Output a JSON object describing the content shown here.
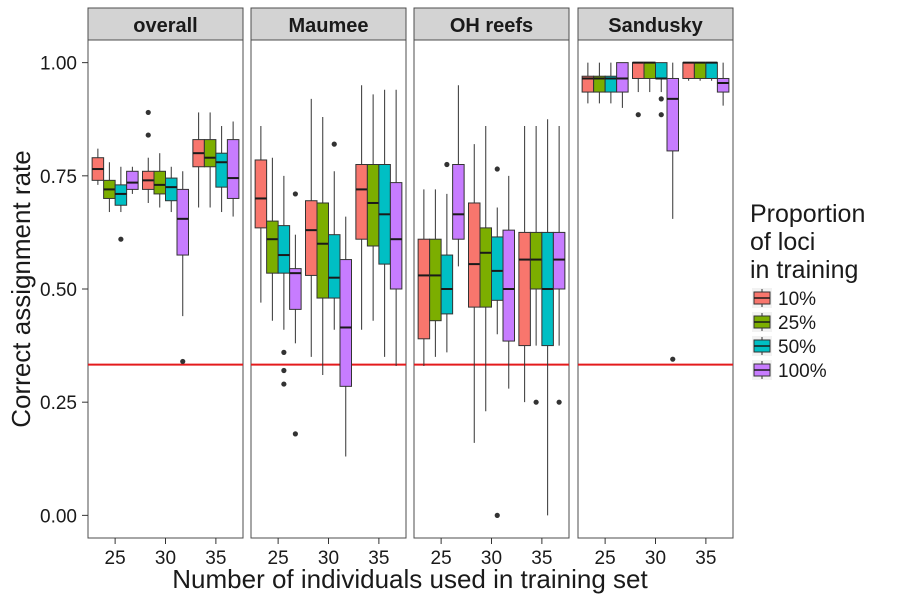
{
  "chart_data": {
    "type": "box",
    "title": "",
    "xlabel": "Number of individuals used in training set",
    "ylabel": "Correct assignment rate",
    "ylim": [
      -0.05,
      1.05
    ],
    "yticks": [
      "0.00",
      "0.25",
      "0.50",
      "0.75",
      "1.00"
    ],
    "ytick_values": [
      0,
      0.25,
      0.5,
      0.75,
      1.0
    ],
    "categories": [
      "25",
      "30",
      "35"
    ],
    "reference_line": {
      "y": 0.333,
      "color": "#e41a1c"
    },
    "legend": {
      "title_lines": [
        "Proportion",
        "of loci",
        "in training"
      ],
      "placement": "right",
      "entries": [
        {
          "label": "10%",
          "color": "#F8766D"
        },
        {
          "label": "25%",
          "color": "#7CAE00"
        },
        {
          "label": "50%",
          "color": "#00BFC4"
        },
        {
          "label": "100%",
          "color": "#C77CFF"
        }
      ]
    },
    "panels": [
      {
        "name": "overall",
        "groups": [
          {
            "x": "25",
            "boxes": [
              {
                "series": "10%",
                "min": 0.73,
                "q1": 0.74,
                "median": 0.765,
                "q3": 0.79,
                "max": 0.81,
                "outliers": []
              },
              {
                "series": "25%",
                "min": 0.67,
                "q1": 0.7,
                "median": 0.72,
                "q3": 0.74,
                "max": 0.78,
                "outliers": []
              },
              {
                "series": "50%",
                "min": 0.67,
                "q1": 0.685,
                "median": 0.71,
                "q3": 0.73,
                "max": 0.77,
                "outliers": [
                  0.61
                ]
              },
              {
                "series": "100%",
                "min": 0.71,
                "q1": 0.72,
                "median": 0.735,
                "q3": 0.76,
                "max": 0.77,
                "outliers": []
              }
            ]
          },
          {
            "x": "30",
            "boxes": [
              {
                "series": "10%",
                "min": 0.69,
                "q1": 0.72,
                "median": 0.74,
                "q3": 0.76,
                "max": 0.79,
                "outliers": [
                  0.84,
                  0.89
                ]
              },
              {
                "series": "25%",
                "min": 0.68,
                "q1": 0.71,
                "median": 0.73,
                "q3": 0.76,
                "max": 0.8,
                "outliers": []
              },
              {
                "series": "50%",
                "min": 0.67,
                "q1": 0.695,
                "median": 0.725,
                "q3": 0.745,
                "max": 0.77,
                "outliers": []
              },
              {
                "series": "100%",
                "min": 0.44,
                "q1": 0.575,
                "median": 0.655,
                "q3": 0.72,
                "max": 0.76,
                "outliers": [
                  0.34
                ]
              }
            ]
          },
          {
            "x": "35",
            "boxes": [
              {
                "series": "10%",
                "min": 0.68,
                "q1": 0.77,
                "median": 0.8,
                "q3": 0.83,
                "max": 0.89,
                "outliers": []
              },
              {
                "series": "25%",
                "min": 0.68,
                "q1": 0.77,
                "median": 0.79,
                "q3": 0.83,
                "max": 0.89,
                "outliers": []
              },
              {
                "series": "50%",
                "min": 0.67,
                "q1": 0.725,
                "median": 0.78,
                "q3": 0.8,
                "max": 0.86,
                "outliers": []
              },
              {
                "series": "100%",
                "min": 0.66,
                "q1": 0.7,
                "median": 0.745,
                "q3": 0.83,
                "max": 0.87,
                "outliers": []
              }
            ]
          }
        ]
      },
      {
        "name": "Maumee",
        "groups": [
          {
            "x": "25",
            "boxes": [
              {
                "series": "10%",
                "min": 0.47,
                "q1": 0.635,
                "median": 0.7,
                "q3": 0.785,
                "max": 0.86,
                "outliers": []
              },
              {
                "series": "25%",
                "min": 0.43,
                "q1": 0.535,
                "median": 0.61,
                "q3": 0.65,
                "max": 0.79,
                "outliers": []
              },
              {
                "series": "50%",
                "min": 0.41,
                "q1": 0.535,
                "median": 0.575,
                "q3": 0.64,
                "max": 0.75,
                "outliers": [
                  0.36,
                  0.32,
                  0.29
                ]
              },
              {
                "series": "100%",
                "min": 0.38,
                "q1": 0.455,
                "median": 0.535,
                "q3": 0.545,
                "max": 0.62,
                "outliers": [
                  0.71,
                  0.18
                ]
              }
            ]
          },
          {
            "x": "30",
            "boxes": [
              {
                "series": "10%",
                "min": 0.35,
                "q1": 0.53,
                "median": 0.63,
                "q3": 0.695,
                "max": 0.92,
                "outliers": []
              },
              {
                "series": "25%",
                "min": 0.31,
                "q1": 0.48,
                "median": 0.6,
                "q3": 0.69,
                "max": 0.88,
                "outliers": []
              },
              {
                "series": "50%",
                "min": 0.41,
                "q1": 0.48,
                "median": 0.525,
                "q3": 0.62,
                "max": 0.76,
                "outliers": [
                  0.82
                ]
              },
              {
                "series": "100%",
                "min": 0.13,
                "q1": 0.285,
                "median": 0.415,
                "q3": 0.565,
                "max": 0.66,
                "outliers": []
              }
            ]
          },
          {
            "x": "35",
            "boxes": [
              {
                "series": "10%",
                "min": 0.41,
                "q1": 0.61,
                "median": 0.72,
                "q3": 0.775,
                "max": 0.95,
                "outliers": []
              },
              {
                "series": "25%",
                "min": 0.43,
                "q1": 0.595,
                "median": 0.69,
                "q3": 0.775,
                "max": 0.93,
                "outliers": []
              },
              {
                "series": "50%",
                "min": 0.35,
                "q1": 0.555,
                "median": 0.665,
                "q3": 0.775,
                "max": 0.94,
                "outliers": []
              },
              {
                "series": "100%",
                "min": 0.33,
                "q1": 0.5,
                "median": 0.61,
                "q3": 0.735,
                "max": 0.94,
                "outliers": []
              }
            ]
          }
        ]
      },
      {
        "name": "OH reefs",
        "groups": [
          {
            "x": "25",
            "boxes": [
              {
                "series": "10%",
                "min": 0.33,
                "q1": 0.39,
                "median": 0.53,
                "q3": 0.61,
                "max": 0.72,
                "outliers": []
              },
              {
                "series": "25%",
                "min": 0.35,
                "q1": 0.43,
                "median": 0.53,
                "q3": 0.61,
                "max": 0.72,
                "outliers": []
              },
              {
                "series": "50%",
                "min": 0.36,
                "q1": 0.445,
                "median": 0.5,
                "q3": 0.575,
                "max": 0.71,
                "outliers": [
                  0.775
                ]
              },
              {
                "series": "100%",
                "min": 0.55,
                "q1": 0.61,
                "median": 0.665,
                "q3": 0.775,
                "max": 0.95,
                "outliers": []
              }
            ]
          },
          {
            "x": "30",
            "boxes": [
              {
                "series": "10%",
                "min": 0.16,
                "q1": 0.46,
                "median": 0.555,
                "q3": 0.69,
                "max": 0.82,
                "outliers": []
              },
              {
                "series": "25%",
                "min": 0.23,
                "q1": 0.46,
                "median": 0.58,
                "q3": 0.635,
                "max": 0.86,
                "outliers": []
              },
              {
                "series": "50%",
                "min": 0.4,
                "q1": 0.475,
                "median": 0.54,
                "q3": 0.615,
                "max": 0.68,
                "outliers": [
                  0.765,
                  0.0
                ]
              },
              {
                "series": "100%",
                "min": 0.28,
                "q1": 0.385,
                "median": 0.5,
                "q3": 0.63,
                "max": 0.75,
                "outliers": []
              }
            ]
          },
          {
            "x": "35",
            "boxes": [
              {
                "series": "10%",
                "min": 0.25,
                "q1": 0.375,
                "median": 0.565,
                "q3": 0.625,
                "max": 0.86,
                "outliers": []
              },
              {
                "series": "25%",
                "min": 0.375,
                "q1": 0.5,
                "median": 0.565,
                "q3": 0.625,
                "max": 0.86,
                "outliers": [
                  0.25
                ]
              },
              {
                "series": "50%",
                "min": 0.0,
                "q1": 0.375,
                "median": 0.5,
                "q3": 0.625,
                "max": 0.875,
                "outliers": []
              },
              {
                "series": "100%",
                "min": 0.375,
                "q1": 0.5,
                "median": 0.565,
                "q3": 0.625,
                "max": 0.86,
                "outliers": [
                  0.25
                ]
              }
            ]
          }
        ]
      },
      {
        "name": "Sandusky",
        "groups": [
          {
            "x": "25",
            "boxes": [
              {
                "series": "10%",
                "min": 0.91,
                "q1": 0.935,
                "median": 0.965,
                "q3": 0.97,
                "max": 1.0,
                "outliers": []
              },
              {
                "series": "25%",
                "min": 0.91,
                "q1": 0.935,
                "median": 0.965,
                "q3": 0.97,
                "max": 1.0,
                "outliers": []
              },
              {
                "series": "50%",
                "min": 0.91,
                "q1": 0.935,
                "median": 0.965,
                "q3": 0.97,
                "max": 1.0,
                "outliers": []
              },
              {
                "series": "100%",
                "min": 0.9,
                "q1": 0.935,
                "median": 0.965,
                "q3": 1.0,
                "max": 1.0,
                "outliers": []
              }
            ]
          },
          {
            "x": "30",
            "boxes": [
              {
                "series": "10%",
                "min": 0.935,
                "q1": 0.965,
                "median": 1.0,
                "q3": 1.0,
                "max": 1.0,
                "outliers": [
                  0.885
                ]
              },
              {
                "series": "25%",
                "min": 0.935,
                "q1": 0.965,
                "median": 1.0,
                "q3": 1.0,
                "max": 1.0,
                "outliers": []
              },
              {
                "series": "50%",
                "min": 0.935,
                "q1": 0.965,
                "median": 0.965,
                "q3": 1.0,
                "max": 1.0,
                "outliers": [
                  0.92,
                  0.885
                ]
              },
              {
                "series": "100%",
                "min": 0.655,
                "q1": 0.805,
                "median": 0.92,
                "q3": 0.965,
                "max": 1.0,
                "outliers": [
                  0.345
                ]
              }
            ]
          },
          {
            "x": "35",
            "boxes": [
              {
                "series": "10%",
                "min": 0.96,
                "q1": 0.965,
                "median": 1.0,
                "q3": 1.0,
                "max": 1.0,
                "outliers": []
              },
              {
                "series": "25%",
                "min": 0.96,
                "q1": 0.965,
                "median": 1.0,
                "q3": 1.0,
                "max": 1.0,
                "outliers": []
              },
              {
                "series": "50%",
                "min": 0.96,
                "q1": 0.965,
                "median": 1.0,
                "q3": 1.0,
                "max": 1.0,
                "outliers": []
              },
              {
                "series": "100%",
                "min": 0.905,
                "q1": 0.935,
                "median": 0.955,
                "q3": 0.965,
                "max": 1.0,
                "outliers": []
              }
            ]
          }
        ]
      }
    ]
  }
}
